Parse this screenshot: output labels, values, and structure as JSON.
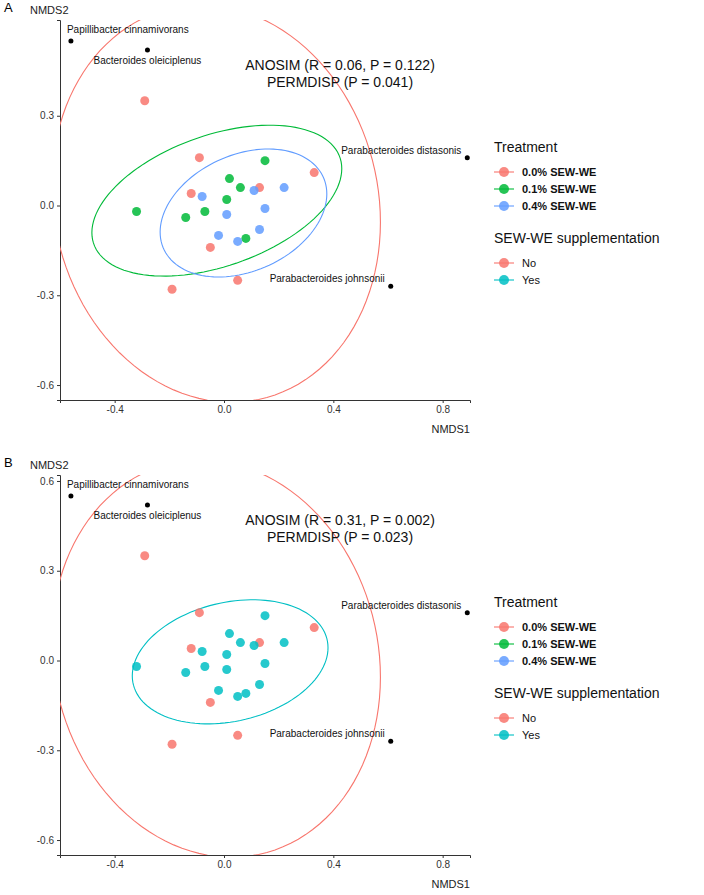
{
  "chart_data": [
    {
      "type": "scatter",
      "panel_label": "A",
      "xlabel": "NMDS1",
      "ylabel": "NMDS2",
      "xlim": [
        -0.6,
        0.9
      ],
      "ylim": [
        -0.65,
        0.62
      ],
      "xticks": [
        -0.4,
        {
          "value": 0,
          "label": "0.0"
        },
        0.4,
        0.8
      ],
      "yticks": [
        -0.6,
        -0.3,
        {
          "value": 0,
          "label": "0.0"
        },
        0.3
      ],
      "annotations": [
        "ANOSIM (R = 0.06, P = 0.122)",
        "PERMDISP (P = 0.041)"
      ],
      "legend": "right",
      "legend_groups": [
        {
          "title": "Treatment",
          "names": [
            "0.0% SEW-WE",
            "0.1% SEW-WE",
            "0.4% SEW-WE"
          ],
          "colors": [
            "#F8766D",
            "#00BA38",
            "#619CFF"
          ]
        },
        {
          "title": "SEW-WE supplementation",
          "names": [
            "No",
            "Yes"
          ],
          "colors": [
            "#F8766D",
            "#00BFC4"
          ]
        }
      ],
      "series": [
        {
          "name": "0.0% SEW-WE",
          "color": "#F8766D",
          "x": [
            -0.29,
            -0.09,
            -0.12,
            0.13,
            0.33,
            -0.05,
            -0.19,
            0.05
          ],
          "y": [
            0.35,
            0.16,
            0.04,
            0.06,
            0.11,
            -0.14,
            -0.28,
            -0.25
          ]
        },
        {
          "name": "0.1% SEW-WE",
          "color": "#00BA38",
          "x": [
            -0.32,
            -0.14,
            -0.07,
            0.02,
            0.01,
            0.06,
            0.15,
            0.08
          ],
          "y": [
            -0.02,
            -0.04,
            -0.02,
            0.09,
            0.02,
            0.06,
            0.15,
            -0.11
          ]
        },
        {
          "name": "0.4% SEW-WE",
          "color": "#619CFF",
          "x": [
            -0.08,
            -0.02,
            0.01,
            0.05,
            0.11,
            0.15,
            0.13,
            0.22
          ],
          "y": [
            0.03,
            -0.1,
            -0.03,
            -0.12,
            0.05,
            -0.01,
            -0.08,
            0.06
          ]
        }
      ],
      "species": {
        "names": [
          "Papillibacter cinnamivorans",
          "Bacteroides oleiciplenus",
          "Parabacteroides distasonis",
          "Parabacteroides johnsonii"
        ],
        "x": [
          -0.56,
          -0.28,
          0.89,
          0.61
        ],
        "y": [
          0.55,
          0.52,
          0.16,
          -0.27
        ]
      }
    },
    {
      "type": "scatter",
      "panel_label": "B",
      "xlabel": "NMDS1",
      "ylabel": "NMDS2",
      "xlim": [
        -0.6,
        0.9
      ],
      "ylim": [
        -0.65,
        0.62
      ],
      "xticks": [
        -0.4,
        {
          "value": 0,
          "label": "0.0"
        },
        0.4,
        0.8
      ],
      "yticks": [
        -0.6,
        -0.3,
        {
          "value": 0,
          "label": "0.0"
        },
        0.3,
        0.6
      ],
      "annotations": [
        "ANOSIM (R = 0.31, P = 0.002)",
        "PERMDISP (P = 0.023)"
      ],
      "legend": "right",
      "legend_groups": [
        {
          "title": "Treatment",
          "names": [
            "0.0% SEW-WE",
            "0.1% SEW-WE",
            "0.4% SEW-WE"
          ],
          "colors": [
            "#F8766D",
            "#00BA38",
            "#619CFF"
          ]
        },
        {
          "title": "SEW-WE supplementation",
          "names": [
            "No",
            "Yes"
          ],
          "colors": [
            "#F8766D",
            "#00BFC4"
          ]
        }
      ],
      "series": [
        {
          "name": "No",
          "color": "#F8766D",
          "x": [
            -0.29,
            -0.09,
            -0.12,
            0.13,
            0.33,
            -0.05,
            -0.19,
            0.05
          ],
          "y": [
            0.35,
            0.16,
            0.04,
            0.06,
            0.11,
            -0.14,
            -0.28,
            -0.25
          ]
        },
        {
          "name": "Yes",
          "color": "#00BFC4",
          "x": [
            -0.32,
            -0.14,
            -0.07,
            0.02,
            0.01,
            0.06,
            0.15,
            0.08,
            -0.08,
            -0.02,
            0.01,
            0.05,
            0.11,
            0.15,
            0.13,
            0.22
          ],
          "y": [
            -0.02,
            -0.04,
            -0.02,
            0.09,
            0.02,
            0.06,
            0.15,
            -0.11,
            0.03,
            -0.1,
            -0.03,
            -0.12,
            0.05,
            -0.01,
            -0.08,
            0.06
          ]
        }
      ],
      "species": {
        "names": [
          "Papillibacter cinnamivorans",
          "Bacteroides oleiciplenus",
          "Parabacteroides distasonis",
          "Parabacteroides johnsonii"
        ],
        "x": [
          -0.56,
          -0.28,
          0.89,
          0.61
        ],
        "y": [
          0.55,
          0.52,
          0.16,
          -0.27
        ]
      }
    }
  ]
}
